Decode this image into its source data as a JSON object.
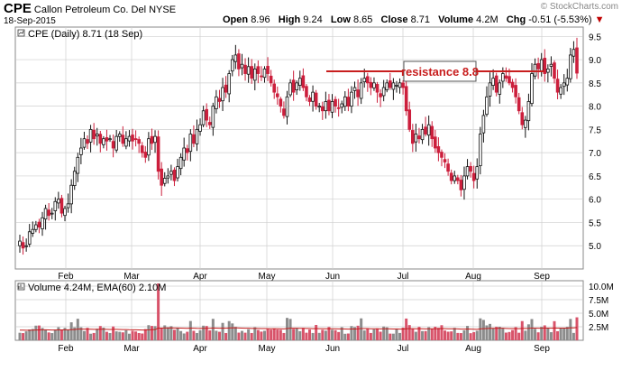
{
  "header": {
    "symbol": "CPE",
    "company": "Callon Petroleum Co. Del",
    "exchange": "NYSE",
    "date": "18-Sep-2015",
    "watermark": "© StockCharts.com",
    "open_label": "Open",
    "open": "8.96",
    "high_label": "High",
    "high": "9.24",
    "low_label": "Low",
    "low": "8.65",
    "close_label": "Close",
    "close": "8.71",
    "volume_label": "Volume",
    "volume": "4.2M",
    "chg_label": "Chg",
    "chg": "-0.51 (-5.53%)",
    "chg_arrow": "▼"
  },
  "price_legend": "CPE (Daily) 8.71 (18 Sep)",
  "volume_legend": "Volume 4.24M, EMA(60) 2.10M",
  "colors": {
    "up": "#111111",
    "down": "#cc1f3c",
    "grid": "#cfcfcf",
    "vol_up": "#8c8c8c",
    "vol_down": "#d8536a",
    "ema": "#c31b1b",
    "resistance": "#c81e1e"
  },
  "chart_data": [
    {
      "type": "candlestick",
      "ticker": "CPE",
      "ylim": [
        4.5,
        9.7
      ],
      "y_ticks": [
        "5.0",
        "5.5",
        "6.0",
        "6.5",
        "7.0",
        "7.5",
        "8.0",
        "8.5",
        "9.0",
        "9.5"
      ],
      "x_ticks": [
        "Feb",
        "Mar",
        "Apr",
        "May",
        "Jun",
        "Jul",
        "Aug",
        "Sep"
      ],
      "close_series": [
        5.1,
        4.95,
        5.0,
        5.3,
        5.35,
        5.45,
        5.4,
        5.6,
        5.8,
        5.65,
        5.7,
        5.95,
        6.0,
        5.7,
        5.8,
        5.9,
        6.3,
        6.6,
        6.9,
        7.1,
        7.3,
        7.2,
        7.5,
        7.3,
        7.4,
        7.2,
        7.3,
        7.25,
        7.3,
        7.1,
        7.35,
        7.4,
        7.2,
        7.3,
        7.35,
        7.25,
        7.3,
        7.2,
        7.0,
        6.9,
        7.3,
        7.2,
        7.35,
        6.6,
        6.3,
        6.45,
        6.5,
        6.6,
        6.4,
        6.7,
        6.9,
        7.1,
        7.0,
        7.4,
        7.2,
        7.5,
        7.6,
        7.9,
        7.7,
        7.6,
        8.0,
        8.2,
        8.1,
        8.4,
        8.3,
        8.7,
        9.0,
        9.1,
        8.8,
        8.9,
        8.7,
        8.85,
        8.6,
        8.8,
        8.7,
        8.65,
        8.8,
        8.7,
        8.5,
        8.3,
        8.2,
        8.0,
        7.8,
        8.2,
        8.5,
        8.3,
        8.5,
        8.6,
        8.4,
        8.2,
        8.1,
        8.3,
        8.0,
        8.0,
        7.9,
        8.1,
        7.9,
        8.1,
        8.0,
        7.95,
        8.05,
        8.2,
        8.0,
        8.3,
        8.4,
        8.2,
        8.5,
        8.6,
        8.5,
        8.4,
        8.5,
        8.3,
        8.2,
        8.4,
        8.5,
        8.4,
        8.5,
        8.45,
        8.5,
        8.4,
        7.9,
        7.5,
        7.2,
        7.4,
        7.3,
        7.5,
        7.4,
        7.6,
        7.3,
        7.1,
        7.0,
        6.9,
        6.8,
        6.6,
        6.4,
        6.5,
        6.4,
        6.2,
        6.5,
        6.7,
        6.6,
        6.4,
        6.7,
        7.4,
        7.8,
        8.2,
        8.5,
        8.6,
        8.3,
        8.5,
        8.7,
        8.6,
        8.5,
        8.4,
        8.2,
        7.9,
        7.6,
        7.7,
        8.1,
        8.7,
        8.9,
        8.8,
        9.0,
        8.7,
        8.8,
        8.9,
        8.6,
        8.3,
        8.4,
        8.5,
        8.6,
        9.1,
        9.22,
        8.71
      ],
      "annotation": {
        "text": "resistance 8.8",
        "level": 8.8
      }
    },
    {
      "type": "bar",
      "name": "Volume",
      "y_ticks": [
        "2.5M",
        "5.0M",
        "7.5M",
        "10.0M"
      ],
      "ylim": [
        0,
        11.0
      ],
      "notable": {
        "Mar spike": 10.5,
        "last": 4.24
      },
      "ema60": 2.1
    }
  ]
}
